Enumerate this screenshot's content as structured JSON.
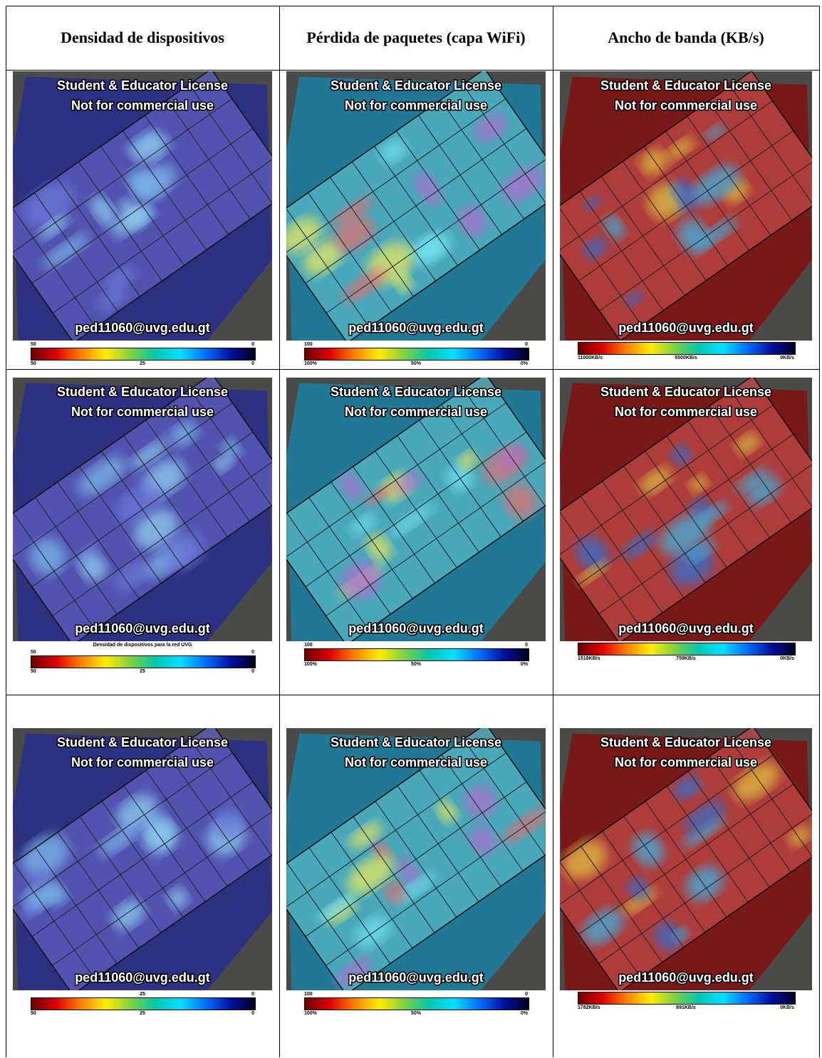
{
  "header": {
    "columns": [
      "Densidad de dispositivos",
      "Pérdida de paquetes (capa WiFi)",
      "Ancho de banda (KB/s)"
    ]
  },
  "rows": [
    {
      "cells": [
        {
          "line1": "Student & Educator License",
          "line2": "Not for commercial use",
          "email": "ped11060@uvg.edu.gt",
          "colorbar": {
            "top": {
              "left": "50",
              "right": "0"
            },
            "bottom": {
              "left": "50",
              "middle": "25",
              "right": "0"
            }
          }
        },
        {
          "line1": "Student & Educator License",
          "line2": "Not for commercial use",
          "email": "ped11060@uvg.edu.gt",
          "colorbar": {
            "top": {
              "left": "100",
              "right": "0"
            },
            "bottom": {
              "left": "100%",
              "middle": "50%",
              "right": "0%"
            }
          }
        },
        {
          "line1": "Student & Educator License",
          "line2": "Not for commercial use",
          "email": "ped11060@uvg.edu.gt",
          "colorbar": {
            "bottom": {
              "left": "11000KB/s",
              "middle": "5500KB/s",
              "right": "0KB/s"
            }
          }
        }
      ]
    },
    {
      "cells": [
        {
          "line1": "Student & Educator License",
          "line2": "Not for commercial use",
          "email": "ped11060@uvg.edu.gt",
          "caption": "Densidad de dispositivos para la red UVG",
          "colorbar": {
            "top": {
              "left": "50",
              "right": "0"
            },
            "bottom": {
              "left": "50",
              "middle": "25",
              "right": "0"
            }
          }
        },
        {
          "line1": "Student & Educator License",
          "line2": "Not for commercial use",
          "email": "ped11060@uvg.edu.gt",
          "colorbar": {
            "top": {
              "left": "100",
              "right": "0"
            },
            "bottom": {
              "left": "100%",
              "middle": "50%",
              "right": "0%"
            }
          }
        },
        {
          "line1": "Student & Educator License",
          "line2": "Not for commercial use",
          "email": "ped11060@uvg.edu.gt",
          "colorbar": {
            "bottom": {
              "left": "1518KB/s",
              "middle": "759KB/s",
              "right": "0KB/s"
            }
          }
        }
      ]
    },
    {
      "cells": [
        {
          "line1": "Student & Educator License",
          "line2": "Not for commercial use",
          "email": "ped11060@uvg.edu.gt",
          "colorbar": {
            "top": {
              "middle": "25",
              "right": "0"
            },
            "bottom": {
              "left": "50",
              "middle": "25",
              "right": "0"
            }
          }
        },
        {
          "line1": "Student & Educator License",
          "line2": "Not for commercial use",
          "email": "ped11060@uvg.edu.gt",
          "colorbar": {
            "top": {
              "left": "100",
              "right": "0"
            },
            "bottom": {
              "left": "100%",
              "middle": "50%",
              "right": "0%"
            }
          }
        },
        {
          "line1": "Student & Educator License",
          "line2": "Not for commercial use",
          "email": "ped11060@uvg.edu.gt",
          "colorbar": {
            "bottom": {
              "left": "1782KB/s",
              "middle": "891KB/s",
              "right": "0KB/s"
            }
          }
        }
      ]
    }
  ]
}
